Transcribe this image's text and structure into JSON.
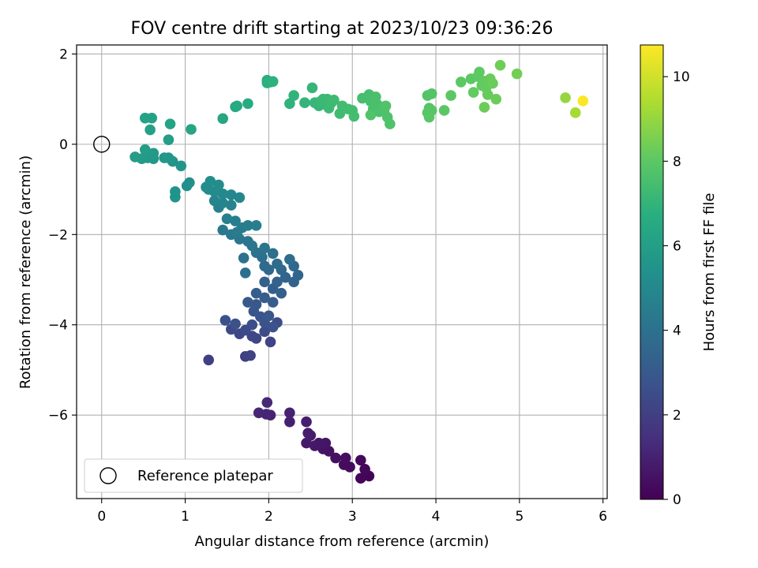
{
  "chart_data": {
    "type": "scatter",
    "title": "FOV centre drift starting at 2023/10/23 09:36:26",
    "xlabel": "Angular distance from reference (arcmin)",
    "ylabel": "Rotation from reference (arcmin)",
    "xlim": [
      -0.3,
      6.05
    ],
    "ylim": [
      -7.85,
      2.2
    ],
    "xticks": [
      0,
      1,
      2,
      3,
      4,
      5,
      6
    ],
    "yticks": [
      2,
      0,
      -2,
      -4,
      -6
    ],
    "grid": true,
    "colormap": "viridis",
    "colorbar": {
      "label": "Hours from first FF file",
      "range": [
        0,
        10.75
      ],
      "ticks": [
        0,
        2,
        4,
        6,
        8,
        10
      ]
    },
    "reference": {
      "x": 0,
      "y": 0,
      "label": "Reference platepar"
    },
    "legend": {
      "position": "lower left",
      "entries": [
        "Reference platepar"
      ]
    },
    "series": [
      {
        "x": 3.2,
        "y": -7.35,
        "t": 0.1
      },
      {
        "x": 3.1,
        "y": -7.4,
        "t": 0.15
      },
      {
        "x": 3.15,
        "y": -7.2,
        "t": 0.2
      },
      {
        "x": 3.1,
        "y": -7.0,
        "t": 0.25
      },
      {
        "x": 2.97,
        "y": -7.15,
        "t": 0.3
      },
      {
        "x": 2.9,
        "y": -7.1,
        "t": 0.35
      },
      {
        "x": 2.92,
        "y": -6.95,
        "t": 0.4
      },
      {
        "x": 2.8,
        "y": -6.95,
        "t": 0.45
      },
      {
        "x": 2.72,
        "y": -6.8,
        "t": 0.5
      },
      {
        "x": 2.65,
        "y": -6.75,
        "t": 0.55
      },
      {
        "x": 2.68,
        "y": -6.62,
        "t": 0.6
      },
      {
        "x": 2.6,
        "y": -6.62,
        "t": 0.65
      },
      {
        "x": 2.55,
        "y": -6.68,
        "t": 0.7
      },
      {
        "x": 2.45,
        "y": -6.62,
        "t": 0.75
      },
      {
        "x": 2.47,
        "y": -6.4,
        "t": 0.8
      },
      {
        "x": 2.5,
        "y": -6.45,
        "t": 0.85
      },
      {
        "x": 2.45,
        "y": -6.15,
        "t": 0.9
      },
      {
        "x": 2.25,
        "y": -6.15,
        "t": 0.95
      },
      {
        "x": 2.25,
        "y": -5.95,
        "t": 1.0
      },
      {
        "x": 2.02,
        "y": -6.0,
        "t": 1.05
      },
      {
        "x": 1.97,
        "y": -5.98,
        "t": 1.1
      },
      {
        "x": 1.88,
        "y": -5.95,
        "t": 1.15
      },
      {
        "x": 1.98,
        "y": -5.72,
        "t": 1.2
      },
      {
        "x": 1.28,
        "y": -4.78,
        "t": 2.0
      },
      {
        "x": 1.72,
        "y": -4.7,
        "t": 2.05
      },
      {
        "x": 1.78,
        "y": -4.68,
        "t": 2.1
      },
      {
        "x": 2.02,
        "y": -4.38,
        "t": 2.15
      },
      {
        "x": 1.85,
        "y": -4.3,
        "t": 2.2
      },
      {
        "x": 1.8,
        "y": -4.25,
        "t": 2.25
      },
      {
        "x": 1.65,
        "y": -4.2,
        "t": 2.3
      },
      {
        "x": 1.72,
        "y": -4.12,
        "t": 2.35
      },
      {
        "x": 1.55,
        "y": -4.1,
        "t": 2.4
      },
      {
        "x": 1.95,
        "y": -4.15,
        "t": 2.45
      },
      {
        "x": 2.1,
        "y": -3.95,
        "t": 2.5
      },
      {
        "x": 1.8,
        "y": -4.0,
        "t": 2.55
      },
      {
        "x": 1.6,
        "y": -3.98,
        "t": 2.6
      },
      {
        "x": 1.48,
        "y": -3.9,
        "t": 2.65
      },
      {
        "x": 2.05,
        "y": -4.05,
        "t": 2.7
      },
      {
        "x": 1.95,
        "y": -3.95,
        "t": 2.75
      },
      {
        "x": 1.9,
        "y": -3.82,
        "t": 2.8
      },
      {
        "x": 1.82,
        "y": -3.7,
        "t": 2.85
      },
      {
        "x": 2.0,
        "y": -3.8,
        "t": 2.9
      },
      {
        "x": 1.85,
        "y": -3.55,
        "t": 2.95
      },
      {
        "x": 1.75,
        "y": -3.5,
        "t": 3.0
      },
      {
        "x": 2.05,
        "y": -3.5,
        "t": 3.05
      },
      {
        "x": 1.95,
        "y": -3.4,
        "t": 3.1
      },
      {
        "x": 1.85,
        "y": -3.3,
        "t": 3.15
      },
      {
        "x": 2.05,
        "y": -3.2,
        "t": 3.2
      },
      {
        "x": 2.15,
        "y": -3.3,
        "t": 3.25
      },
      {
        "x": 1.95,
        "y": -3.05,
        "t": 3.3
      },
      {
        "x": 2.1,
        "y": -3.05,
        "t": 3.35
      },
      {
        "x": 2.3,
        "y": -3.05,
        "t": 3.4
      },
      {
        "x": 2.2,
        "y": -2.95,
        "t": 3.45
      },
      {
        "x": 2.35,
        "y": -2.9,
        "t": 3.5
      },
      {
        "x": 2.3,
        "y": -2.7,
        "t": 3.55
      },
      {
        "x": 2.15,
        "y": -2.78,
        "t": 3.6
      },
      {
        "x": 2.0,
        "y": -2.78,
        "t": 3.65
      },
      {
        "x": 1.95,
        "y": -2.7,
        "t": 3.7
      },
      {
        "x": 2.1,
        "y": -2.65,
        "t": 3.75
      },
      {
        "x": 2.25,
        "y": -2.55,
        "t": 3.8
      },
      {
        "x": 2.05,
        "y": -2.42,
        "t": 3.85
      },
      {
        "x": 1.92,
        "y": -2.5,
        "t": 3.9
      },
      {
        "x": 1.72,
        "y": -2.85,
        "t": 3.95
      },
      {
        "x": 1.7,
        "y": -2.52,
        "t": 4.0
      },
      {
        "x": 1.85,
        "y": -2.4,
        "t": 4.05
      },
      {
        "x": 1.95,
        "y": -2.3,
        "t": 4.1
      },
      {
        "x": 1.8,
        "y": -2.25,
        "t": 4.15
      },
      {
        "x": 1.75,
        "y": -2.15,
        "t": 4.2
      },
      {
        "x": 1.65,
        "y": -2.1,
        "t": 4.25
      },
      {
        "x": 1.55,
        "y": -2.0,
        "t": 4.3
      },
      {
        "x": 1.45,
        "y": -1.9,
        "t": 4.35
      },
      {
        "x": 1.62,
        "y": -1.95,
        "t": 4.4
      },
      {
        "x": 1.68,
        "y": -1.85,
        "t": 4.45
      },
      {
        "x": 1.75,
        "y": -1.8,
        "t": 4.5
      },
      {
        "x": 1.85,
        "y": -1.8,
        "t": 4.55
      },
      {
        "x": 1.6,
        "y": -1.7,
        "t": 4.6
      },
      {
        "x": 1.5,
        "y": -1.65,
        "t": 4.65
      },
      {
        "x": 1.4,
        "y": -1.4,
        "t": 4.7
      },
      {
        "x": 1.55,
        "y": -1.35,
        "t": 4.75
      },
      {
        "x": 1.45,
        "y": -1.3,
        "t": 4.8
      },
      {
        "x": 1.35,
        "y": -1.25,
        "t": 4.85
      },
      {
        "x": 1.65,
        "y": -1.18,
        "t": 4.9
      },
      {
        "x": 1.55,
        "y": -1.12,
        "t": 4.95
      },
      {
        "x": 1.45,
        "y": -1.1,
        "t": 5.0
      },
      {
        "x": 1.35,
        "y": -1.05,
        "t": 5.05
      },
      {
        "x": 1.28,
        "y": -1.0,
        "t": 5.1
      },
      {
        "x": 1.25,
        "y": -0.95,
        "t": 5.15
      },
      {
        "x": 1.4,
        "y": -0.9,
        "t": 5.2
      },
      {
        "x": 1.3,
        "y": -0.82,
        "t": 5.25
      },
      {
        "x": 1.05,
        "y": -0.85,
        "t": 5.3
      },
      {
        "x": 1.02,
        "y": -0.92,
        "t": 5.35
      },
      {
        "x": 0.88,
        "y": -1.05,
        "t": 5.4
      },
      {
        "x": 0.88,
        "y": -1.17,
        "t": 5.45
      },
      {
        "x": 0.95,
        "y": -0.48,
        "t": 5.5
      },
      {
        "x": 0.85,
        "y": -0.38,
        "t": 5.55
      },
      {
        "x": 0.8,
        "y": -0.3,
        "t": 5.6
      },
      {
        "x": 0.75,
        "y": -0.3,
        "t": 5.65
      },
      {
        "x": 0.62,
        "y": -0.32,
        "t": 5.7
      },
      {
        "x": 0.62,
        "y": -0.2,
        "t": 5.75
      },
      {
        "x": 0.55,
        "y": -0.3,
        "t": 5.8
      },
      {
        "x": 0.48,
        "y": -0.32,
        "t": 5.85
      },
      {
        "x": 0.4,
        "y": -0.28,
        "t": 5.9
      },
      {
        "x": 0.52,
        "y": -0.12,
        "t": 5.95
      },
      {
        "x": 0.8,
        "y": 0.1,
        "t": 6.0
      },
      {
        "x": 0.58,
        "y": 0.32,
        "t": 6.05
      },
      {
        "x": 0.52,
        "y": 0.58,
        "t": 6.1
      },
      {
        "x": 0.6,
        "y": 0.58,
        "t": 6.15
      },
      {
        "x": 0.82,
        "y": 0.45,
        "t": 6.2
      },
      {
        "x": 1.07,
        "y": 0.33,
        "t": 6.25
      },
      {
        "x": 1.45,
        "y": 0.57,
        "t": 6.35
      },
      {
        "x": 1.6,
        "y": 0.83,
        "t": 6.45
      },
      {
        "x": 1.62,
        "y": 0.85,
        "t": 6.5
      },
      {
        "x": 1.75,
        "y": 0.9,
        "t": 6.6
      },
      {
        "x": 1.98,
        "y": 1.42,
        "t": 6.7
      },
      {
        "x": 2.02,
        "y": 1.38,
        "t": 6.75
      },
      {
        "x": 1.98,
        "y": 1.36,
        "t": 6.8
      },
      {
        "x": 2.05,
        "y": 1.39,
        "t": 6.85
      },
      {
        "x": 2.25,
        "y": 0.9,
        "t": 6.9
      },
      {
        "x": 2.3,
        "y": 1.08,
        "t": 6.95
      },
      {
        "x": 2.43,
        "y": 0.92,
        "t": 7.0
      },
      {
        "x": 2.52,
        "y": 1.25,
        "t": 7.05
      },
      {
        "x": 2.55,
        "y": 0.92,
        "t": 7.1
      },
      {
        "x": 2.6,
        "y": 0.85,
        "t": 7.12
      },
      {
        "x": 2.62,
        "y": 0.95,
        "t": 7.15
      },
      {
        "x": 2.65,
        "y": 1.0,
        "t": 7.18
      },
      {
        "x": 2.7,
        "y": 1.0,
        "t": 7.2
      },
      {
        "x": 2.68,
        "y": 0.88,
        "t": 7.22
      },
      {
        "x": 2.72,
        "y": 0.8,
        "t": 7.25
      },
      {
        "x": 2.75,
        "y": 0.92,
        "t": 7.28
      },
      {
        "x": 2.78,
        "y": 0.98,
        "t": 7.3
      },
      {
        "x": 2.85,
        "y": 0.68,
        "t": 7.35
      },
      {
        "x": 2.88,
        "y": 0.85,
        "t": 7.38
      },
      {
        "x": 2.95,
        "y": 0.78,
        "t": 7.4
      },
      {
        "x": 3.0,
        "y": 0.75,
        "t": 7.42
      },
      {
        "x": 3.02,
        "y": 0.62,
        "t": 7.45
      },
      {
        "x": 3.12,
        "y": 1.02,
        "t": 7.48
      },
      {
        "x": 3.2,
        "y": 1.1,
        "t": 7.5
      },
      {
        "x": 3.22,
        "y": 0.95,
        "t": 7.52
      },
      {
        "x": 3.25,
        "y": 0.78,
        "t": 7.55
      },
      {
        "x": 3.28,
        "y": 1.05,
        "t": 7.58
      },
      {
        "x": 3.3,
        "y": 0.88,
        "t": 7.6
      },
      {
        "x": 3.32,
        "y": 0.72,
        "t": 7.62
      },
      {
        "x": 3.38,
        "y": 0.75,
        "t": 7.65
      },
      {
        "x": 3.42,
        "y": 0.6,
        "t": 7.68
      },
      {
        "x": 3.45,
        "y": 0.45,
        "t": 7.7
      },
      {
        "x": 3.4,
        "y": 0.85,
        "t": 7.72
      },
      {
        "x": 3.22,
        "y": 0.65,
        "t": 7.74
      },
      {
        "x": 3.9,
        "y": 1.08,
        "t": 7.8
      },
      {
        "x": 3.95,
        "y": 1.12,
        "t": 7.82
      },
      {
        "x": 3.92,
        "y": 0.8,
        "t": 7.85
      },
      {
        "x": 3.95,
        "y": 0.75,
        "t": 7.88
      },
      {
        "x": 3.9,
        "y": 0.7,
        "t": 7.9
      },
      {
        "x": 3.92,
        "y": 0.6,
        "t": 7.92
      },
      {
        "x": 4.1,
        "y": 0.75,
        "t": 7.95
      },
      {
        "x": 4.18,
        "y": 1.08,
        "t": 7.98
      },
      {
        "x": 4.3,
        "y": 1.38,
        "t": 8.0
      },
      {
        "x": 4.42,
        "y": 1.45,
        "t": 8.02
      },
      {
        "x": 4.5,
        "y": 1.5,
        "t": 8.05
      },
      {
        "x": 4.52,
        "y": 1.6,
        "t": 8.07
      },
      {
        "x": 4.55,
        "y": 1.3,
        "t": 8.1
      },
      {
        "x": 4.45,
        "y": 1.15,
        "t": 8.12
      },
      {
        "x": 4.58,
        "y": 1.4,
        "t": 8.15
      },
      {
        "x": 4.6,
        "y": 1.25,
        "t": 8.17
      },
      {
        "x": 4.62,
        "y": 1.1,
        "t": 8.2
      },
      {
        "x": 4.65,
        "y": 1.45,
        "t": 8.22
      },
      {
        "x": 4.68,
        "y": 1.35,
        "t": 8.25
      },
      {
        "x": 4.72,
        "y": 1.0,
        "t": 8.28
      },
      {
        "x": 4.58,
        "y": 0.82,
        "t": 8.3
      },
      {
        "x": 4.77,
        "y": 1.75,
        "t": 8.35
      },
      {
        "x": 4.97,
        "y": 1.56,
        "t": 8.4
      },
      {
        "x": 5.55,
        "y": 1.03,
        "t": 9.0
      },
      {
        "x": 5.67,
        "y": 0.7,
        "t": 9.3
      },
      {
        "x": 5.76,
        "y": 0.96,
        "t": 10.7
      }
    ]
  }
}
